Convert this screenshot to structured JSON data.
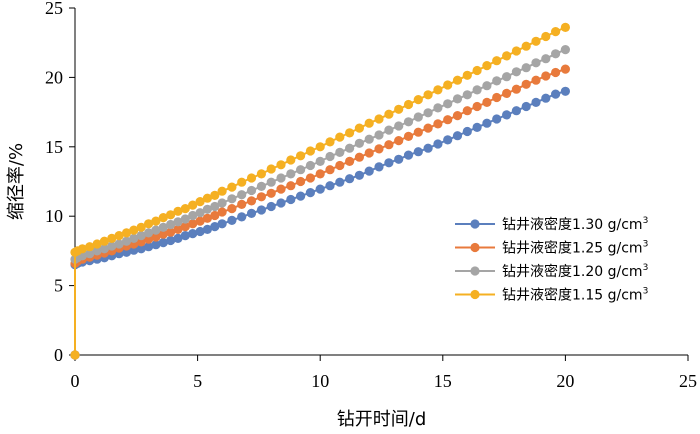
{
  "chart_data": {
    "type": "line",
    "title": "",
    "xlabel": "钻开时间/d",
    "ylabel": "缩径率/%",
    "xlim": [
      0,
      25
    ],
    "ylim": [
      0,
      25
    ],
    "xticks": [
      0,
      5,
      10,
      15,
      20,
      25
    ],
    "yticks": [
      0,
      5,
      10,
      15,
      20,
      25
    ],
    "grid": false,
    "legend_position": "right",
    "series": [
      {
        "name": "钻井液密度1.30 g/cm",
        "name_sup": "3",
        "color": "#5b7fbd",
        "x": [
          0,
          0,
          0.1,
          0.3,
          0.6,
          0.9,
          1.2,
          1.5,
          1.8,
          2.1,
          2.4,
          2.7,
          3.0,
          3.3,
          3.6,
          3.9,
          4.2,
          4.5,
          4.8,
          5.1,
          5.4,
          5.7,
          6.0,
          6.4,
          6.8,
          7.2,
          7.6,
          8.0,
          8.4,
          8.8,
          9.2,
          9.6,
          10.0,
          10.4,
          10.8,
          11.2,
          11.6,
          12.0,
          12.4,
          12.8,
          13.2,
          13.6,
          14.0,
          14.4,
          14.8,
          15.2,
          15.6,
          16.0,
          16.4,
          16.8,
          17.2,
          17.6,
          18.0,
          18.4,
          18.8,
          19.2,
          19.6,
          20.0
        ],
        "y": [
          0,
          6.5,
          6.6,
          6.7,
          6.8,
          6.9,
          7.0,
          7.15,
          7.3,
          7.4,
          7.55,
          7.65,
          7.8,
          7.95,
          8.1,
          8.25,
          8.4,
          8.6,
          8.75,
          8.9,
          9.05,
          9.25,
          9.45,
          9.7,
          9.95,
          10.2,
          10.45,
          10.7,
          10.95,
          11.2,
          11.45,
          11.7,
          11.95,
          12.2,
          12.45,
          12.7,
          12.95,
          13.25,
          13.55,
          13.85,
          14.1,
          14.4,
          14.65,
          14.9,
          15.2,
          15.5,
          15.8,
          16.1,
          16.4,
          16.7,
          17.0,
          17.3,
          17.6,
          17.9,
          18.2,
          18.5,
          18.8,
          19.0
        ]
      },
      {
        "name": "钻井液密度1.25 g/cm",
        "name_sup": "3",
        "color": "#e87a3c",
        "x": [
          0,
          0,
          0.1,
          0.3,
          0.6,
          0.9,
          1.2,
          1.5,
          1.8,
          2.1,
          2.4,
          2.7,
          3.0,
          3.3,
          3.6,
          3.9,
          4.2,
          4.5,
          4.8,
          5.1,
          5.4,
          5.7,
          6.0,
          6.4,
          6.8,
          7.2,
          7.6,
          8.0,
          8.4,
          8.8,
          9.2,
          9.6,
          10.0,
          10.4,
          10.8,
          11.2,
          11.6,
          12.0,
          12.4,
          12.8,
          13.2,
          13.6,
          14.0,
          14.4,
          14.8,
          15.2,
          15.6,
          16.0,
          16.4,
          16.8,
          17.2,
          17.6,
          18.0,
          18.4,
          18.8,
          19.2,
          19.6,
          20.0
        ],
        "y": [
          0,
          6.6,
          6.75,
          6.9,
          7.05,
          7.2,
          7.35,
          7.5,
          7.7,
          7.85,
          8.0,
          8.15,
          8.35,
          8.5,
          8.7,
          8.85,
          9.05,
          9.25,
          9.45,
          9.65,
          9.85,
          10.05,
          10.3,
          10.55,
          10.85,
          11.1,
          11.4,
          11.65,
          11.95,
          12.2,
          12.5,
          12.75,
          13.05,
          13.35,
          13.65,
          13.95,
          14.25,
          14.55,
          14.85,
          15.15,
          15.45,
          15.75,
          16.05,
          16.35,
          16.65,
          16.95,
          17.25,
          17.6,
          17.9,
          18.2,
          18.55,
          18.85,
          19.15,
          19.5,
          19.8,
          20.1,
          20.35,
          20.6
        ]
      },
      {
        "name": "钻井液密度1.20 g/cm",
        "name_sup": "3",
        "color": "#a5a5a5",
        "x": [
          0,
          0,
          0.1,
          0.3,
          0.6,
          0.9,
          1.2,
          1.5,
          1.8,
          2.1,
          2.4,
          2.7,
          3.0,
          3.3,
          3.6,
          3.9,
          4.2,
          4.5,
          4.8,
          5.1,
          5.4,
          5.7,
          6.0,
          6.4,
          6.8,
          7.2,
          7.6,
          8.0,
          8.4,
          8.8,
          9.2,
          9.6,
          10.0,
          10.4,
          10.8,
          11.2,
          11.6,
          12.0,
          12.4,
          12.8,
          13.2,
          13.6,
          14.0,
          14.4,
          14.8,
          15.2,
          15.6,
          16.0,
          16.4,
          16.8,
          17.2,
          17.6,
          18.0,
          18.4,
          18.8,
          19.2,
          19.6,
          20.0
        ],
        "y": [
          0,
          6.9,
          7.0,
          7.15,
          7.3,
          7.5,
          7.65,
          7.85,
          8.0,
          8.2,
          8.4,
          8.6,
          8.8,
          9.0,
          9.2,
          9.4,
          9.6,
          9.8,
          10.05,
          10.25,
          10.5,
          10.7,
          10.95,
          11.25,
          11.55,
          11.85,
          12.15,
          12.45,
          12.75,
          13.05,
          13.35,
          13.65,
          13.95,
          14.3,
          14.6,
          14.9,
          15.25,
          15.55,
          15.85,
          16.2,
          16.5,
          16.8,
          17.15,
          17.45,
          17.8,
          18.1,
          18.45,
          18.75,
          19.1,
          19.4,
          19.75,
          20.05,
          20.4,
          20.7,
          21.05,
          21.35,
          21.7,
          22.0
        ]
      },
      {
        "name": "钻井液密度1.15 g/cm",
        "name_sup": "3",
        "color": "#f5b022",
        "x": [
          0,
          0,
          0.1,
          0.3,
          0.6,
          0.9,
          1.2,
          1.5,
          1.8,
          2.1,
          2.4,
          2.7,
          3.0,
          3.3,
          3.6,
          3.9,
          4.2,
          4.5,
          4.8,
          5.1,
          5.4,
          5.7,
          6.0,
          6.4,
          6.8,
          7.2,
          7.6,
          8.0,
          8.4,
          8.8,
          9.2,
          9.6,
          10.0,
          10.4,
          10.8,
          11.2,
          11.6,
          12.0,
          12.4,
          12.8,
          13.2,
          13.6,
          14.0,
          14.4,
          14.8,
          15.2,
          15.6,
          16.0,
          16.4,
          16.8,
          17.2,
          17.6,
          18.0,
          18.4,
          18.8,
          19.2,
          19.6,
          20.0
        ],
        "y": [
          0,
          7.4,
          7.5,
          7.65,
          7.8,
          8.0,
          8.2,
          8.4,
          8.6,
          8.8,
          9.0,
          9.2,
          9.45,
          9.65,
          9.9,
          10.1,
          10.35,
          10.55,
          10.8,
          11.05,
          11.3,
          11.5,
          11.8,
          12.1,
          12.45,
          12.75,
          13.05,
          13.4,
          13.7,
          14.05,
          14.35,
          14.7,
          15.0,
          15.35,
          15.7,
          16.0,
          16.35,
          16.7,
          17.0,
          17.35,
          17.7,
          18.05,
          18.4,
          18.75,
          19.1,
          19.45,
          19.8,
          20.15,
          20.5,
          20.85,
          21.2,
          21.55,
          21.9,
          22.25,
          22.6,
          22.95,
          23.3,
          23.6
        ]
      }
    ]
  }
}
